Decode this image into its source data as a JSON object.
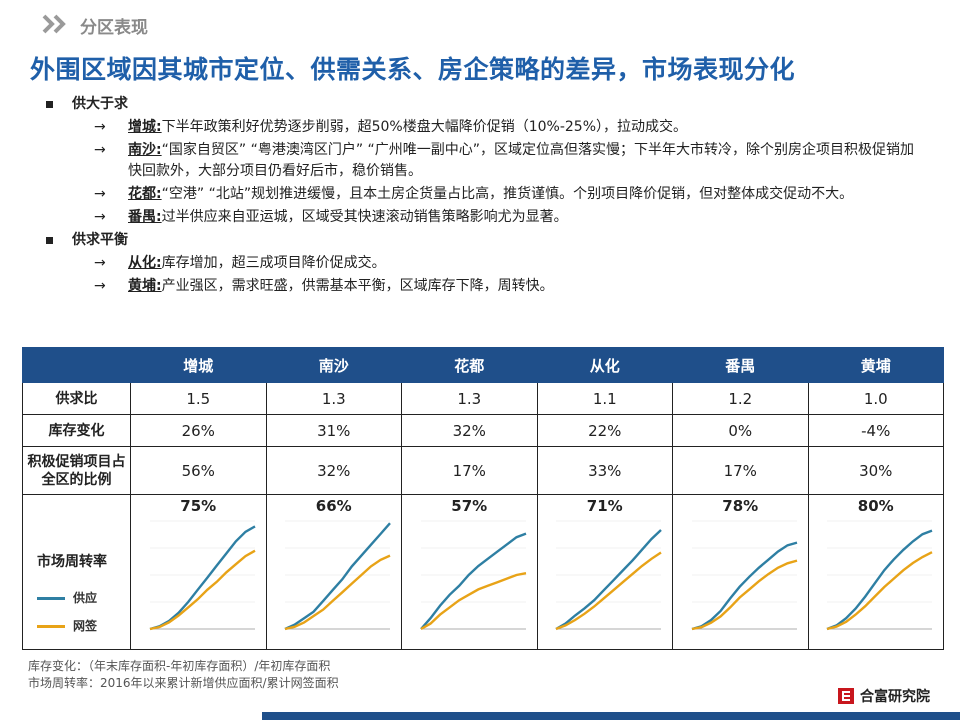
{
  "section": {
    "label": "分区表现"
  },
  "headline": "外围区域因其城市定位、供需关系、房企策略的差异，市场表现分化",
  "groups": [
    {
      "title": "供大于求",
      "items": [
        {
          "city": "增城:",
          "text": "下半年政策利好优势逐步削弱，超50%楼盘大幅降价促销（10%-25%），拉动成交。"
        },
        {
          "city": "南沙:",
          "text": "“国家自贸区” “粤港澳湾区门户” “广州唯一副中心”，区域定位高但落实慢；下半年大市转冷，除个别房企项目积极促销加快回款外，大部分项目仍看好后市，稳价销售。"
        },
        {
          "city": "花都:",
          "text": "“空港” “北站”规划推进缓慢，且本土房企货量占比高，推货谨慎。个别项目降价促销，但对整体成交促动不大。"
        },
        {
          "city": "番禺:",
          "text": "过半供应来自亚运城，区域受其快速滚动销售策略影响尤为显著。"
        }
      ]
    },
    {
      "title": "供求平衡",
      "items": [
        {
          "city": "从化:",
          "text": "库存增加，超三成项目降价促成交。"
        },
        {
          "city": "黄埔:",
          "text": "产业强区，需求旺盛，供需基本平衡，区域库存下降，周转快。"
        }
      ]
    }
  ],
  "arrow": "→",
  "table": {
    "columns": [
      "增城",
      "南沙",
      "花都",
      "从化",
      "番禺",
      "黄埔"
    ],
    "rows": [
      {
        "label": "供求比",
        "values": [
          "1.5",
          "1.3",
          "1.3",
          "1.1",
          "1.2",
          "1.0"
        ]
      },
      {
        "label": "库存变化",
        "values": [
          "26%",
          "31%",
          "32%",
          "22%",
          "0%",
          "-4%"
        ]
      },
      {
        "label": "积极促销项目占全区的比例",
        "values": [
          "56%",
          "32%",
          "17%",
          "33%",
          "17%",
          "30%"
        ]
      }
    ],
    "turnover_label": "市场周转率",
    "turnover_values": [
      "75%",
      "66%",
      "57%",
      "71%",
      "78%",
      "80%"
    ],
    "legend": [
      {
        "name": "供应",
        "color": "#2e7fa3"
      },
      {
        "name": "网签",
        "color": "#e8a317"
      }
    ]
  },
  "chart_data": [
    {
      "type": "line",
      "title": "增城",
      "ylim": [
        0,
        800
      ],
      "series": [
        {
          "name": "供应",
          "values": [
            0,
            20,
            60,
            120,
            200,
            290,
            380,
            470,
            560,
            650,
            720,
            760
          ]
        },
        {
          "name": "网签",
          "values": [
            0,
            15,
            50,
            100,
            160,
            220,
            290,
            350,
            420,
            480,
            540,
            580
          ]
        }
      ]
    },
    {
      "type": "line",
      "title": "南沙",
      "ylim": [
        0,
        500
      ],
      "series": [
        {
          "name": "供应",
          "values": [
            0,
            20,
            50,
            80,
            130,
            180,
            230,
            290,
            340,
            390,
            440,
            490
          ]
        },
        {
          "name": "网签",
          "values": [
            0,
            10,
            30,
            60,
            90,
            130,
            170,
            210,
            250,
            290,
            320,
            340
          ]
        }
      ]
    },
    {
      "type": "line",
      "title": "花都",
      "ylim": [
        0,
        600
      ],
      "series": [
        {
          "name": "供应",
          "values": [
            0,
            60,
            130,
            190,
            240,
            300,
            350,
            390,
            430,
            470,
            510,
            530
          ]
        },
        {
          "name": "网签",
          "values": [
            0,
            30,
            80,
            120,
            160,
            190,
            220,
            240,
            260,
            280,
            300,
            310
          ]
        }
      ]
    },
    {
      "type": "line",
      "title": "从化",
      "ylim": [
        0,
        1200
      ],
      "series": [
        {
          "name": "供应",
          "values": [
            0,
            60,
            150,
            230,
            320,
            430,
            540,
            650,
            760,
            880,
            1000,
            1100
          ]
        },
        {
          "name": "网签",
          "values": [
            0,
            40,
            100,
            170,
            250,
            340,
            430,
            520,
            610,
            700,
            780,
            850
          ]
        }
      ]
    },
    {
      "type": "line",
      "title": "番禺",
      "ylim": [
        0,
        1200
      ],
      "series": [
        {
          "name": "供应",
          "values": [
            0,
            30,
            100,
            200,
            340,
            470,
            580,
            680,
            770,
            860,
            930,
            960
          ]
        },
        {
          "name": "网签",
          "values": [
            0,
            20,
            70,
            140,
            240,
            350,
            440,
            530,
            610,
            680,
            730,
            760
          ]
        }
      ]
    },
    {
      "type": "line",
      "title": "黄埔",
      "ylim": [
        0,
        900
      ],
      "series": [
        {
          "name": "供应",
          "values": [
            0,
            30,
            90,
            170,
            270,
            380,
            490,
            580,
            660,
            730,
            790,
            820
          ]
        },
        {
          "name": "网签",
          "values": [
            0,
            20,
            60,
            120,
            190,
            270,
            350,
            420,
            490,
            550,
            600,
            640
          ]
        }
      ]
    }
  ],
  "footnotes": [
    "库存变化：（年末库存面积-年初库存面积）/年初库存面积",
    "市场周转率：2016年以来累计新增供应面积/累计网签面积"
  ],
  "brand": "合富研究院",
  "colors": {
    "accent": "#1f5fa9",
    "header": "#1f4f8a"
  }
}
